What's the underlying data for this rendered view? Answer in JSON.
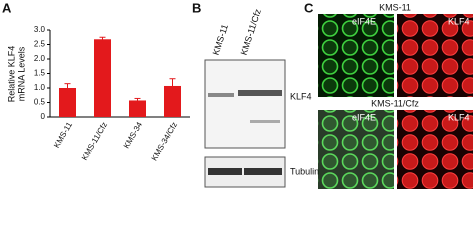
{
  "chart_data": {
    "type": "bar",
    "ylabel": [
      "Relative KLF4",
      "mRNA Levels"
    ],
    "categories": [
      "KMS-11",
      "KMS-11/Cfz",
      "KMS-34",
      "KMS-34/Cfz"
    ],
    "values": [
      1.0,
      2.68,
      0.57,
      1.07
    ],
    "errors": [
      0.15,
      0.07,
      0.07,
      0.25
    ],
    "color": "#e3191c",
    "ylim": [
      0,
      3.0
    ],
    "yticks": [
      0,
      0.5,
      {
        "value": 1.0,
        "label": "1.0"
      },
      1.5,
      {
        "value": 2.0,
        "label": "2.0"
      },
      2.5,
      {
        "value": 3.0,
        "label": "3.0"
      }
    ]
  },
  "panel_labels": [
    "A",
    "B",
    "C"
  ],
  "blot": {
    "lanes": [
      "KMS-11",
      "KMS-11/Cfz"
    ],
    "bands": [
      "KLF4",
      "Tubulin"
    ]
  },
  "microscopy": {
    "rows": [
      {
        "title": "KMS-11",
        "channels": [
          "eIF4E",
          "KLF4"
        ]
      },
      {
        "title": "KMS-11/Cfz",
        "channels": [
          "eIF4E",
          "KLF4"
        ]
      }
    ]
  }
}
